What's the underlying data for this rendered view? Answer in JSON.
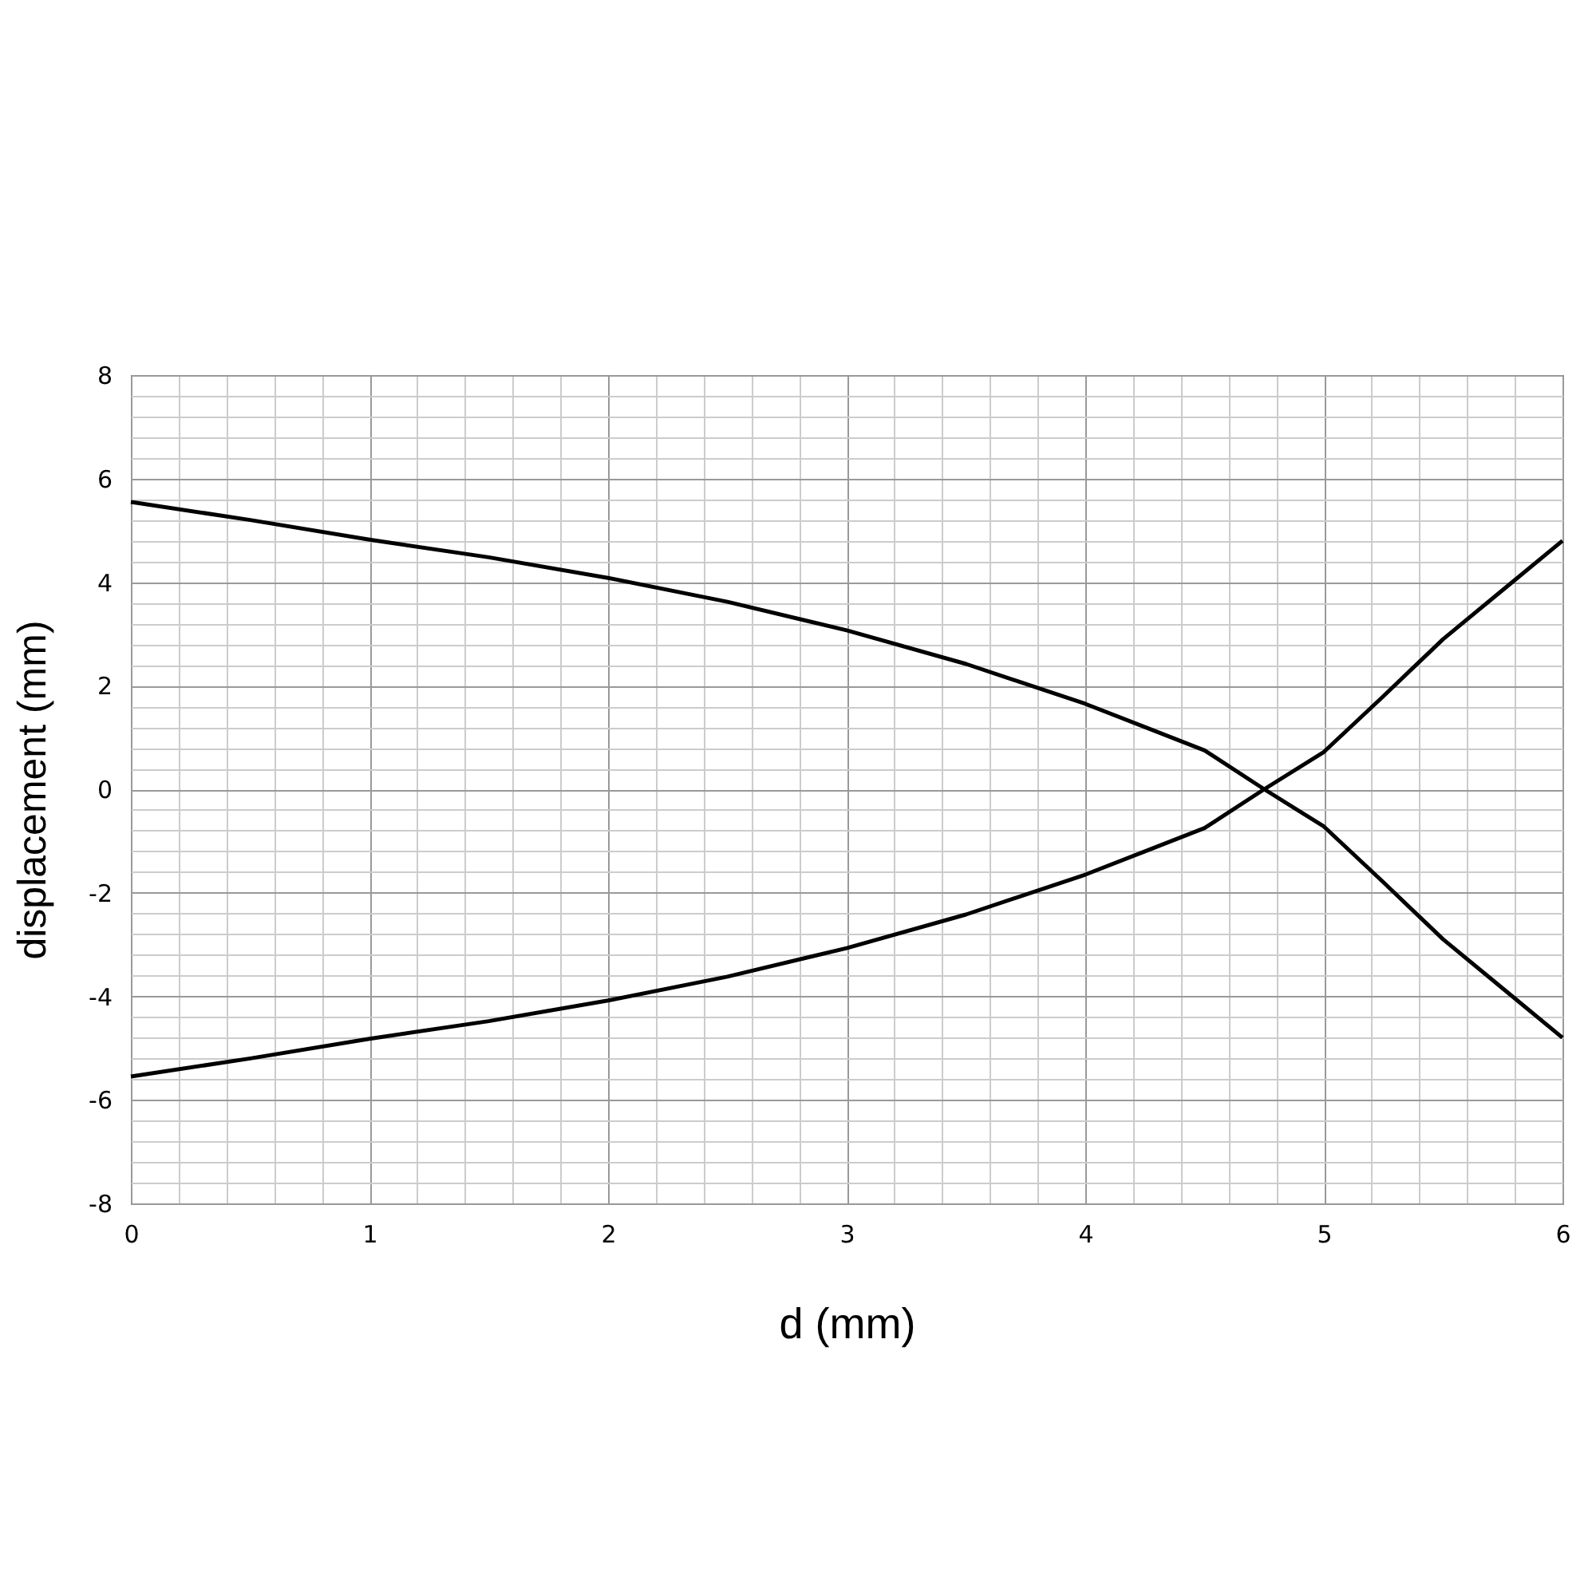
{
  "chart_data": {
    "type": "line",
    "xlabel": "d (mm)",
    "ylabel": "displacement (mm)",
    "x": [
      0,
      0.5,
      1,
      1.5,
      2,
      2.5,
      3,
      3.5,
      4,
      4.25,
      4.5,
      4.75,
      5,
      5.25,
      5.5,
      5.75,
      6
    ],
    "series": [
      {
        "color": "#000000",
        "values": [
          5.55,
          5.2,
          4.82,
          4.48,
          4.08,
          3.62,
          3.07,
          2.42,
          1.65,
          1.2,
          0.75,
          0,
          -0.72,
          -1.8,
          -2.9,
          -3.85,
          -4.8
        ]
      },
      {
        "color": "#000000",
        "values": [
          -5.55,
          -5.2,
          -4.82,
          -4.48,
          -4.08,
          -3.62,
          -3.07,
          -2.42,
          -1.65,
          -1.2,
          -0.75,
          0,
          0.72,
          1.8,
          2.9,
          3.85,
          4.8
        ]
      }
    ],
    "xlim": [
      0,
      6
    ],
    "ylim": [
      -8,
      8
    ],
    "xticks": [
      0,
      {
        "value": 0.2,
        "label": null
      },
      {
        "value": 0.4,
        "label": null
      },
      {
        "value": 0.6,
        "label": null
      },
      {
        "value": 0.8,
        "label": null
      },
      1,
      {
        "value": 1.2,
        "label": null
      },
      {
        "value": 1.4,
        "label": null
      },
      {
        "value": 1.6,
        "label": null
      },
      {
        "value": 1.8,
        "label": null
      },
      2,
      {
        "value": 2.2,
        "label": null
      },
      {
        "value": 2.4,
        "label": null
      },
      {
        "value": 2.6,
        "label": null
      },
      {
        "value": 2.8,
        "label": null
      },
      3,
      {
        "value": 3.2,
        "label": null
      },
      {
        "value": 3.4,
        "label": null
      },
      {
        "value": 3.6,
        "label": null
      },
      {
        "value": 3.8,
        "label": null
      },
      4,
      {
        "value": 4.2,
        "label": null
      },
      {
        "value": 4.4,
        "label": null
      },
      {
        "value": 4.6,
        "label": null
      },
      {
        "value": 4.8,
        "label": null
      },
      5,
      {
        "value": 5.2,
        "label": null
      },
      {
        "value": 5.4,
        "label": null
      },
      {
        "value": 5.6,
        "label": null
      },
      {
        "value": 5.8,
        "label": null
      },
      6
    ],
    "yticks": [
      -8,
      {
        "value": -7.6,
        "label": null
      },
      {
        "value": -7.2,
        "label": null
      },
      {
        "value": -6.8,
        "label": null
      },
      {
        "value": -6.4,
        "label": null
      },
      -6,
      {
        "value": -5.6,
        "label": null
      },
      {
        "value": -5.2,
        "label": null
      },
      {
        "value": -4.8,
        "label": null
      },
      {
        "value": -4.4,
        "label": null
      },
      -4,
      {
        "value": -3.6,
        "label": null
      },
      {
        "value": -3.2,
        "label": null
      },
      {
        "value": -2.8,
        "label": null
      },
      {
        "value": -2.4,
        "label": null
      },
      -2,
      {
        "value": -1.6,
        "label": null
      },
      {
        "value": -1.2,
        "label": null
      },
      {
        "value": -0.8,
        "label": null
      },
      {
        "value": -0.4,
        "label": null
      },
      0,
      {
        "value": 0.4,
        "label": null
      },
      {
        "value": 0.8,
        "label": null
      },
      {
        "value": 1.2,
        "label": null
      },
      {
        "value": 1.6,
        "label": null
      },
      2,
      {
        "value": 2.4,
        "label": null
      },
      {
        "value": 2.8,
        "label": null
      },
      {
        "value": 3.2,
        "label": null
      },
      {
        "value": 3.6,
        "label": null
      },
      4,
      {
        "value": 4.4,
        "label": null
      },
      {
        "value": 4.8,
        "label": null
      },
      {
        "value": 5.2,
        "label": null
      },
      {
        "value": 5.6,
        "label": null
      },
      6,
      {
        "value": 6.4,
        "label": null
      },
      {
        "value": 6.8,
        "label": null
      },
      {
        "value": 7.2,
        "label": null
      },
      {
        "value": 7.6,
        "label": null
      },
      8
    ],
    "grid": true,
    "marker": "none",
    "line_style": "solid",
    "legend": false
  }
}
